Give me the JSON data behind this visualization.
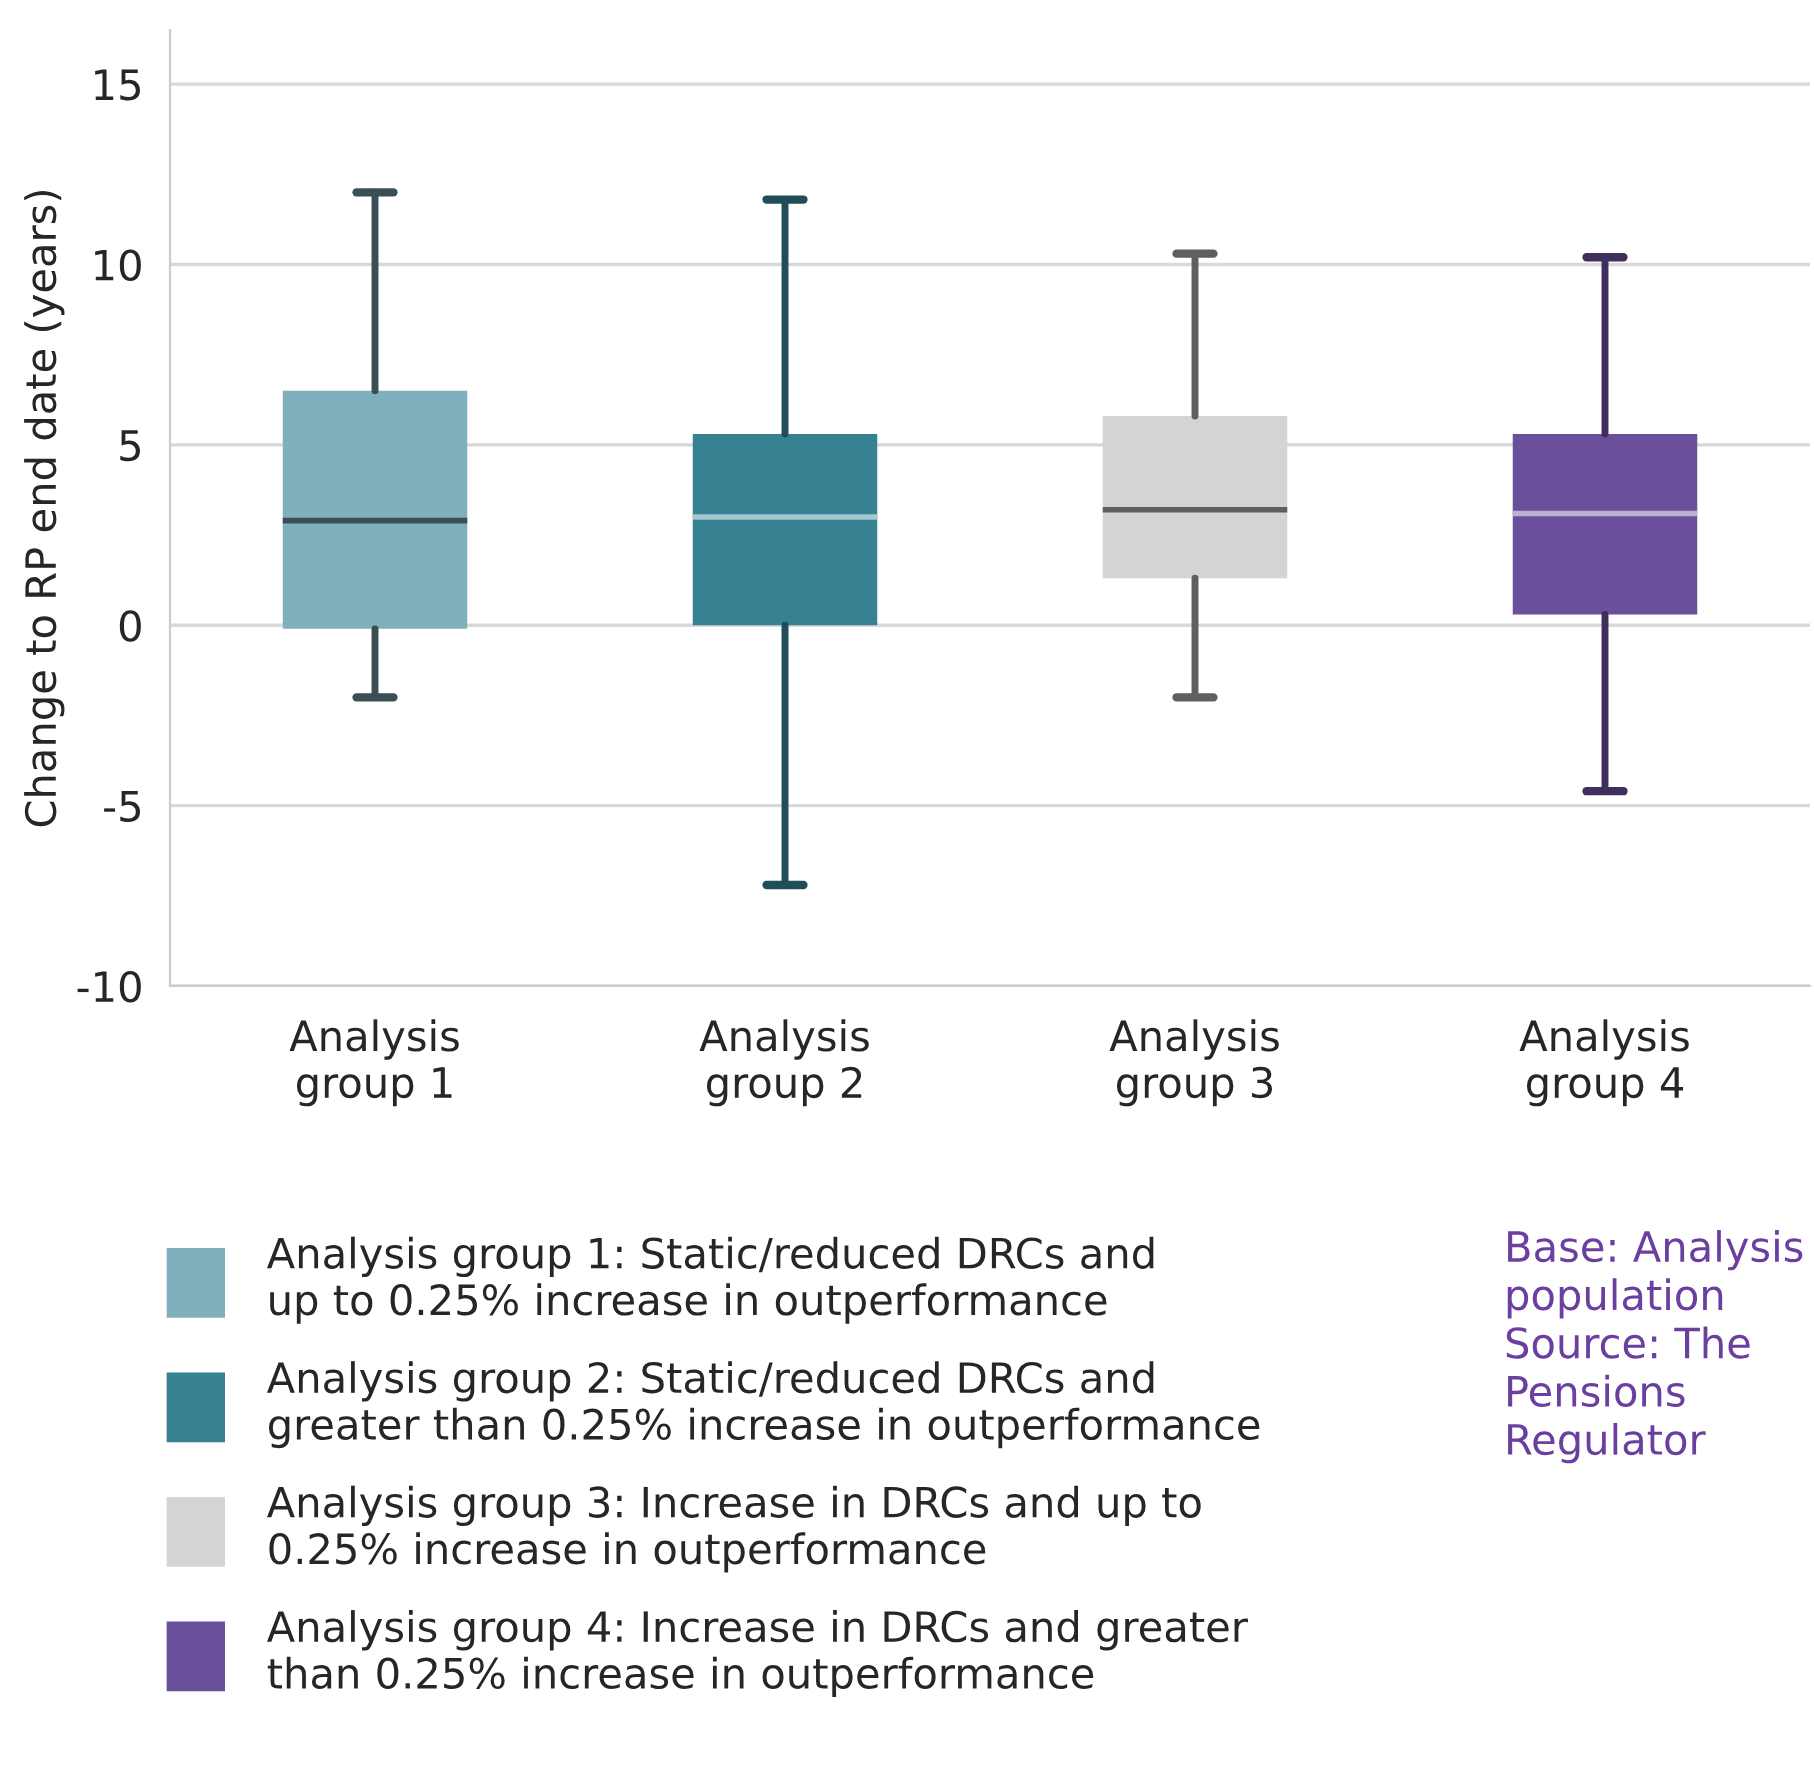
{
  "chart_data": {
    "type": "box",
    "ylabel": "Change to RP end date (years)",
    "categories": [
      "Analysis\ngroup 1",
      "Analysis\ngroup 2",
      "Analysis\ngroup 3",
      "Analysis\ngroup 4"
    ],
    "series": [
      {
        "name": "Analysis group 1: Static/reduced DRCs and\nup to 0.25% increase in outperformance",
        "color": "#7fb0bb",
        "boxes": [
          {
            "low": -2.0,
            "q1": -0.1,
            "median": 2.9,
            "q3": 6.5,
            "high": 12.0
          },
          null,
          null,
          null
        ]
      },
      {
        "name": "Analysis group 2: Static/reduced DRCs and\ngreater than 0.25% increase in outperformance",
        "color": "#368293",
        "boxes": [
          null,
          {
            "low": -7.2,
            "q1": 0.0,
            "median": 3.0,
            "q3": 5.3,
            "high": 11.8
          },
          null,
          null
        ]
      },
      {
        "name": "Analysis group 3: Increase in DRCs and up to\n0.25% increase in outperformance",
        "color": "#d3d4d6",
        "boxes": [
          null,
          null,
          {
            "low": -2.0,
            "q1": 1.3,
            "median": 3.2,
            "q3": 5.8,
            "high": 10.3
          },
          null
        ]
      },
      {
        "name": "Analysis group 4: Increase in DRCs and greater\nthan 0.25% increase in outperformance",
        "color": "#6a4f9b",
        "boxes": [
          null,
          null,
          null,
          {
            "low": -4.6,
            "q1": 0.3,
            "median": 3.1,
            "q3": 5.3,
            "high": 10.2
          }
        ]
      }
    ],
    "ylim": [
      -10,
      16.5
    ],
    "yticks": [
      -10,
      -5,
      0,
      5,
      10,
      15
    ],
    "grid": "y",
    "legend": "bottom left",
    "annotations": [
      "Base: Analysis\npopulation\nSource: The\nPensions\nRegulator"
    ]
  }
}
